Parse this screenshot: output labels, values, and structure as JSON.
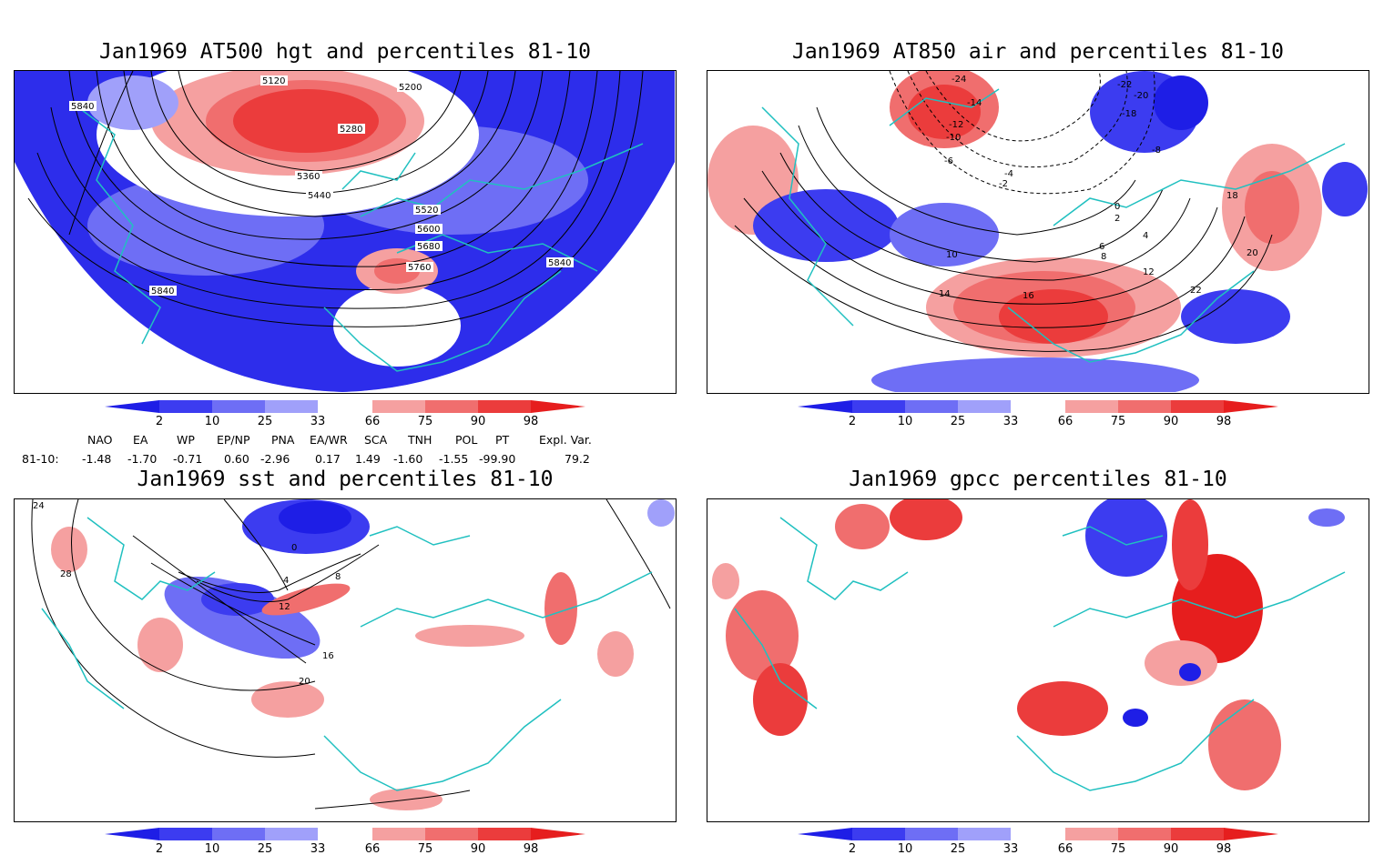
{
  "panels": [
    {
      "id": "p1",
      "title": "Jan1969 AT500 hgt and percentiles 81-10",
      "contour_labels": [
        "5120",
        "5200",
        "5280",
        "5360",
        "5440",
        "5520",
        "5600",
        "5680",
        "5760",
        "5840",
        "5840",
        "5840"
      ]
    },
    {
      "id": "p2",
      "title": "Jan1969 AT850 air and percentiles 81-10",
      "contour_labels": [
        "-24",
        "-22",
        "-20",
        "-18",
        "-14",
        "-12",
        "-10",
        "-8",
        "-6",
        "-4",
        "-2",
        "0",
        "2",
        "4",
        "6",
        "8",
        "10",
        "12",
        "14",
        "16",
        "18",
        "20",
        "22"
      ]
    },
    {
      "id": "p3",
      "title": "Jan1969 sst and percentiles 81-10",
      "contour_labels": [
        "0",
        "4",
        "8",
        "12",
        "16",
        "20",
        "24",
        "28"
      ]
    },
    {
      "id": "p4",
      "title": "Jan1969 gpcc percentiles 81-10",
      "contour_labels": []
    }
  ],
  "colorbar": {
    "labels": [
      "2",
      "10",
      "25",
      "33",
      "66",
      "75",
      "90",
      "98"
    ],
    "colors": {
      "dark_blue": "#1e1ee6",
      "blue": "#3c3cf0",
      "mid_blue": "#6e6ef5",
      "light_blue": "#a0a0fa",
      "light_red": "#f5a0a0",
      "mid_red": "#f06e6e",
      "red": "#eb3c3c",
      "dark_red": "#e61e1e"
    }
  },
  "indices": {
    "headers": [
      "NAO",
      "EA",
      "WP",
      "EP/NP",
      "PNA",
      "EA/WR",
      "SCA",
      "TNH",
      "POL",
      "PT",
      "Expl. Var."
    ],
    "row_label": "81-10:",
    "values": [
      "-1.48",
      "-1.70",
      "-0.71",
      "0.60",
      "-2.96",
      "0.17",
      "1.49",
      "-1.60",
      "-1.55",
      "-99.90",
      "79.2"
    ]
  },
  "colors": {
    "coast": "#20c0c0",
    "contour": "#000000"
  }
}
